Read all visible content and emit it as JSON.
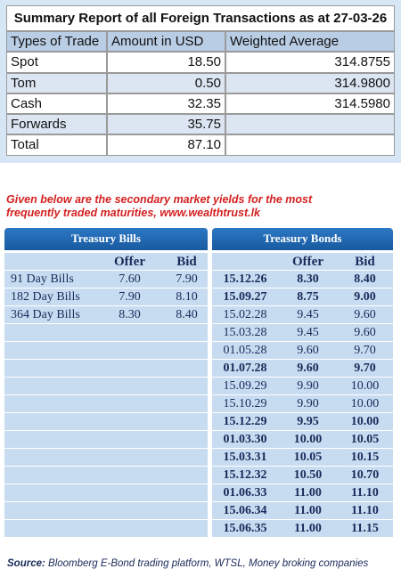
{
  "summary": {
    "title": "Summary Report of all Foreign Transactions as at 27-03-26",
    "headers": [
      "Types of Trade",
      "Amount in USD",
      "Weighted Average"
    ],
    "rows": [
      [
        "Spot",
        "18.50",
        "314.8755"
      ],
      [
        "Tom",
        "0.50",
        "314.9800"
      ],
      [
        "Cash",
        "32.35",
        "314.5980"
      ],
      [
        "Forwards",
        "35.75",
        ""
      ],
      [
        "Total",
        "87.10",
        ""
      ]
    ]
  },
  "intro": "Given below are the secondary market yields for the most frequently traded maturities, www.wealthtrust.lk",
  "bills": {
    "title": "Treasury Bills",
    "headers": [
      "Offer",
      "Bid"
    ],
    "rows": [
      [
        "91 Day Bills",
        "7.60",
        "7.90"
      ],
      [
        "182 Day Bills",
        "7.90",
        "8.10"
      ],
      [
        "364 Day Bills",
        "8.30",
        "8.40"
      ]
    ]
  },
  "bonds": {
    "title": "Treasury Bonds",
    "headers": [
      "Offer",
      "Bid"
    ],
    "rows": [
      {
        "maturity": "15.12.26",
        "offer": "8.30",
        "bid": "8.40",
        "bold": true
      },
      {
        "maturity": "15.09.27",
        "offer": "8.75",
        "bid": "9.00",
        "bold": true
      },
      {
        "maturity": "15.02.28",
        "offer": "9.45",
        "bid": "9.60",
        "bold": false
      },
      {
        "maturity": "15.03.28",
        "offer": "9.45",
        "bid": "9.60",
        "bold": false
      },
      {
        "maturity": "01.05.28",
        "offer": "9.60",
        "bid": "9.70",
        "bold": false
      },
      {
        "maturity": "01.07.28",
        "offer": "9.60",
        "bid": "9.70",
        "bold": true
      },
      {
        "maturity": "15.09.29",
        "offer": "9.90",
        "bid": "10.00",
        "bold": false
      },
      {
        "maturity": "15.10.29",
        "offer": "9.90",
        "bid": "10.00",
        "bold": false
      },
      {
        "maturity": "15.12.29",
        "offer": "9.95",
        "bid": "10.00",
        "bold": true
      },
      {
        "maturity": "01.03.30",
        "offer": "10.00",
        "bid": "10.05",
        "bold": true
      },
      {
        "maturity": "15.03.31",
        "offer": "10.05",
        "bid": "10.15",
        "bold": true
      },
      {
        "maturity": "15.12.32",
        "offer": "10.50",
        "bid": "10.70",
        "bold": true
      },
      {
        "maturity": "01.06.33",
        "offer": "11.00",
        "bid": "11.10",
        "bold": true
      },
      {
        "maturity": "15.06.34",
        "offer": "11.00",
        "bid": "11.10",
        "bold": true
      },
      {
        "maturity": "15.06.35",
        "offer": "11.00",
        "bid": "11.15",
        "bold": true
      }
    ]
  },
  "source": {
    "label": "Source:",
    "text": "Bloomberg E-Bond trading platform, WTSL, Money broking companies"
  }
}
